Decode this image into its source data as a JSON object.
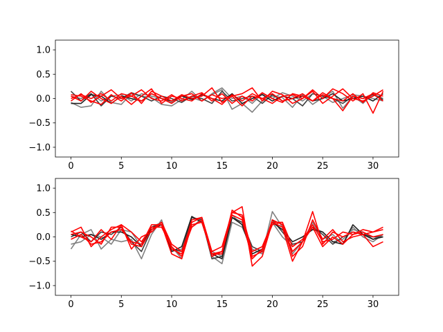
{
  "chart_data": [
    {
      "type": "line",
      "title": "",
      "xlabel": "",
      "ylabel": "",
      "xlim": [
        -1.55,
        32.55
      ],
      "ylim": [
        -1.2,
        1.2
      ],
      "x_ticks": [
        0,
        5,
        10,
        15,
        20,
        25,
        30
      ],
      "y_ticks": [
        -1.0,
        -0.5,
        0.0,
        0.5,
        1.0
      ],
      "x_tick_labels": [
        "0",
        "5",
        "10",
        "15",
        "20",
        "25",
        "30"
      ],
      "y_tick_labels": [
        "−1.0",
        "−0.5",
        "0.0",
        "0.5",
        "1.0"
      ],
      "grid": false,
      "legend": "none",
      "x": [
        0,
        1,
        2,
        3,
        4,
        5,
        6,
        7,
        8,
        9,
        10,
        11,
        12,
        13,
        14,
        15,
        16,
        17,
        18,
        19,
        20,
        21,
        22,
        23,
        24,
        25,
        26,
        27,
        28,
        29,
        30,
        31
      ],
      "series": [
        {
          "color": "#808080",
          "values": [
            -0.08,
            -0.18,
            -0.15,
            0.15,
            -0.08,
            -0.12,
            0.1,
            0.05,
            0.02,
            -0.12,
            -0.15,
            -0.02,
            0.15,
            -0.05,
            0.08,
            0.18,
            -0.22,
            -0.1,
            -0.28,
            -0.05,
            0.05,
            0.02,
            -0.18,
            0.08,
            -0.12,
            0.02,
            0.15,
            -0.2,
            0.05,
            -0.1,
            0.1,
            0.0
          ]
        },
        {
          "color": "#808080",
          "values": [
            0.05,
            0.0,
            0.1,
            -0.05,
            0.05,
            0.08,
            -0.05,
            0.1,
            0.05,
            0.0,
            -0.08,
            0.05,
            0.02,
            -0.05,
            0.1,
            0.22,
            0.0,
            0.05,
            -0.1,
            0.1,
            0.0,
            0.12,
            0.05,
            -0.05,
            0.1,
            0.05,
            -0.08,
            0.0,
            0.08,
            0.05,
            0.0,
            -0.05
          ]
        },
        {
          "color": "#404040",
          "values": [
            0.15,
            -0.05,
            0.1,
            -0.15,
            0.05,
            0.0,
            0.12,
            0.05,
            -0.05,
            0.05,
            0.0,
            -0.08,
            0.05,
            0.0,
            -0.1,
            0.15,
            -0.05,
            0.0,
            0.05,
            -0.1,
            0.08,
            -0.05,
            0.0,
            -0.15,
            0.1,
            0.05,
            0.0,
            -0.1,
            0.05,
            0.0,
            0.08,
            -0.02
          ]
        },
        {
          "color": "#202020",
          "values": [
            -0.1,
            -0.1,
            0.08,
            0.05,
            -0.1,
            0.05,
            0.0,
            -0.05,
            0.1,
            0.0,
            -0.05,
            0.05,
            -0.02,
            0.08,
            0.0,
            -0.05,
            0.1,
            -0.1,
            0.0,
            0.08,
            -0.05,
            0.05,
            0.0,
            0.05,
            -0.05,
            0.0,
            0.1,
            -0.05,
            0.0,
            0.05,
            -0.05,
            0.1
          ]
        },
        {
          "color": "#ff0000",
          "values": [
            0.08,
            0.05,
            -0.05,
            -0.12,
            0.08,
            -0.05,
            0.12,
            -0.1,
            0.15,
            0.05,
            -0.05,
            0.08,
            0.0,
            0.05,
            0.22,
            -0.08,
            0.05,
            0.1,
            0.22,
            -0.05,
            0.15,
            0.08,
            -0.1,
            0.0,
            0.18,
            0.0,
            0.2,
            0.1,
            -0.05,
            0.1,
            -0.3,
            0.15
          ]
        },
        {
          "color": "#ff0000",
          "values": [
            0.0,
            0.08,
            0.0,
            0.1,
            -0.05,
            0.1,
            0.05,
            0.18,
            0.0,
            -0.05,
            0.08,
            -0.05,
            0.05,
            0.12,
            -0.05,
            0.1,
            -0.1,
            0.05,
            -0.05,
            0.12,
            0.0,
            -0.08,
            0.1,
            0.05,
            -0.05,
            0.12,
            0.0,
            -0.05,
            0.1,
            -0.08,
            0.12,
            0.05
          ]
        },
        {
          "color": "#ff0000",
          "values": [
            0.05,
            -0.05,
            0.15,
            0.0,
            -0.1,
            0.05,
            -0.12,
            0.05,
            0.2,
            -0.1,
            0.05,
            0.0,
            -0.05,
            0.1,
            0.0,
            -0.12,
            0.08,
            -0.05,
            0.1,
            0.0,
            -0.1,
            0.05,
            0.08,
            0.0,
            0.15,
            -0.1,
            0.05,
            0.2,
            0.0,
            -0.05,
            0.05,
            0.18
          ]
        },
        {
          "color": "#ff0000",
          "values": [
            -0.05,
            0.1,
            -0.08,
            0.05,
            0.18,
            0.0,
            0.05,
            -0.05,
            0.1,
            0.0,
            -0.1,
            0.05,
            0.1,
            -0.05,
            0.08,
            0.0,
            0.05,
            -0.15,
            0.05,
            0.0,
            0.1,
            -0.05,
            0.0,
            0.1,
            -0.05,
            0.08,
            0.0,
            -0.25,
            0.05,
            0.0,
            0.1,
            -0.05
          ]
        }
      ]
    },
    {
      "type": "line",
      "title": "",
      "xlabel": "",
      "ylabel": "",
      "xlim": [
        -1.55,
        32.55
      ],
      "ylim": [
        -1.2,
        1.2
      ],
      "x_ticks": [
        0,
        5,
        10,
        15,
        20,
        25,
        30
      ],
      "y_ticks": [
        -1.0,
        -0.5,
        0.0,
        0.5,
        1.0
      ],
      "x_tick_labels": [
        "0",
        "5",
        "10",
        "15",
        "20",
        "25",
        "30"
      ],
      "y_tick_labels": [
        "−1.0",
        "−0.5",
        "0.0",
        "0.5",
        "1.0"
      ],
      "grid": false,
      "legend": "none",
      "x": [
        0,
        1,
        2,
        3,
        4,
        5,
        6,
        7,
        8,
        9,
        10,
        11,
        12,
        13,
        14,
        15,
        16,
        17,
        18,
        19,
        20,
        21,
        22,
        23,
        24,
        25,
        26,
        27,
        28,
        29,
        30,
        31
      ],
      "series": [
        {
          "color": "#808080",
          "values": [
            -0.25,
            0.05,
            0.15,
            -0.25,
            -0.05,
            -0.1,
            -0.05,
            -0.45,
            0.05,
            0.35,
            -0.3,
            -0.25,
            0.2,
            0.38,
            -0.4,
            -0.55,
            0.3,
            0.2,
            -0.25,
            -0.35,
            0.52,
            0.2,
            -0.35,
            -0.1,
            0.3,
            -0.05,
            0.05,
            -0.15,
            0.2,
            0.0,
            -0.1,
            0.05
          ]
        },
        {
          "color": "#808080",
          "values": [
            -0.15,
            -0.1,
            0.05,
            0.0,
            -0.15,
            0.15,
            0.1,
            -0.2,
            0.2,
            0.3,
            -0.2,
            -0.45,
            0.4,
            0.3,
            -0.3,
            -0.4,
            0.45,
            0.25,
            -0.3,
            -0.2,
            0.3,
            0.0,
            -0.2,
            -0.05,
            0.2,
            0.1,
            -0.1,
            -0.05,
            0.15,
            0.1,
            -0.05,
            0.05
          ]
        },
        {
          "color": "#404040",
          "values": [
            0.0,
            0.1,
            -0.1,
            0.1,
            0.05,
            0.2,
            -0.1,
            -0.3,
            0.15,
            0.25,
            -0.25,
            -0.3,
            0.4,
            0.35,
            -0.45,
            -0.4,
            0.4,
            0.3,
            -0.2,
            -0.3,
            0.35,
            0.1,
            -0.15,
            -0.1,
            0.2,
            0.05,
            -0.15,
            0.0,
            0.1,
            0.05,
            0.0,
            0.0
          ]
        },
        {
          "color": "#202020",
          "values": [
            0.05,
            0.0,
            0.05,
            -0.05,
            0.1,
            0.1,
            0.0,
            -0.2,
            0.2,
            0.25,
            -0.3,
            -0.2,
            0.42,
            0.3,
            -0.35,
            -0.45,
            0.4,
            0.25,
            -0.35,
            -0.25,
            0.3,
            0.15,
            -0.1,
            0.0,
            0.15,
            0.1,
            -0.1,
            -0.15,
            0.25,
            0.05,
            -0.05,
            0.0
          ]
        },
        {
          "color": "#ff0000",
          "values": [
            0.1,
            0.2,
            -0.2,
            0.0,
            0.15,
            0.25,
            -0.25,
            0.0,
            0.1,
            0.3,
            -0.15,
            -0.3,
            0.3,
            0.4,
            -0.3,
            -0.2,
            0.5,
            0.62,
            -0.6,
            -0.4,
            0.3,
            0.2,
            -0.5,
            -0.1,
            0.52,
            -0.15,
            0.1,
            0.0,
            0.1,
            0.05,
            -0.2,
            -0.1
          ]
        },
        {
          "color": "#ff0000",
          "values": [
            0.05,
            0.1,
            0.0,
            -0.15,
            0.2,
            0.2,
            -0.15,
            -0.2,
            0.15,
            0.3,
            -0.25,
            -0.35,
            0.2,
            0.35,
            -0.4,
            -0.3,
            0.55,
            0.4,
            -0.4,
            -0.3,
            0.35,
            0.25,
            -0.3,
            -0.1,
            0.2,
            -0.2,
            0.0,
            -0.15,
            0.05,
            0.15,
            0.1,
            0.15
          ]
        },
        {
          "color": "#ff0000",
          "values": [
            -0.05,
            0.05,
            -0.15,
            -0.1,
            0.1,
            0.15,
            -0.1,
            -0.15,
            0.25,
            0.25,
            -0.35,
            -0.45,
            0.25,
            0.3,
            -0.35,
            -0.35,
            0.5,
            0.45,
            -0.3,
            -0.2,
            0.3,
            0.3,
            -0.2,
            -0.05,
            0.25,
            -0.1,
            -0.05,
            0.1,
            0.05,
            0.1,
            0.0,
            0.05
          ]
        },
        {
          "color": "#ff0000",
          "values": [
            0.12,
            0.0,
            -0.1,
            0.15,
            -0.05,
            0.25,
            0.1,
            -0.1,
            0.2,
            0.2,
            -0.2,
            -0.4,
            0.35,
            0.4,
            -0.35,
            -0.3,
            0.45,
            0.35,
            -0.45,
            -0.25,
            0.25,
            0.3,
            -0.4,
            -0.2,
            0.35,
            -0.05,
            0.15,
            -0.1,
            0.0,
            0.05,
            0.1,
            0.2
          ]
        }
      ]
    }
  ]
}
